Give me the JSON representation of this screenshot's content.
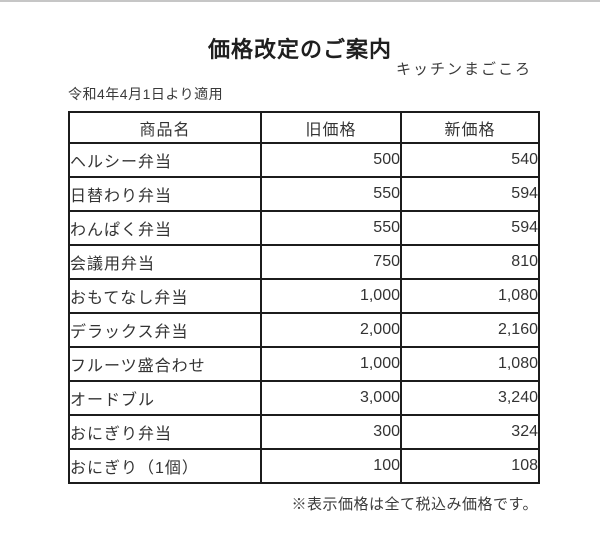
{
  "page": {
    "title": "価格改定のご案内",
    "company": "キッチンまごころ",
    "effective_date": "令和4年4月1日より適用",
    "footnote": "※表示価格は全て税込み価格です。"
  },
  "table": {
    "headers": [
      "商品名",
      "旧価格",
      "新価格"
    ],
    "rows": [
      {
        "name": "ヘルシー弁当",
        "old": "500",
        "new": "540"
      },
      {
        "name": "日替わり弁当",
        "old": "550",
        "new": "594"
      },
      {
        "name": "わんぱく弁当",
        "old": "550",
        "new": "594"
      },
      {
        "name": "会議用弁当",
        "old": "750",
        "new": "810"
      },
      {
        "name": "おもてなし弁当",
        "old": "1,000",
        "new": "1,080"
      },
      {
        "name": "デラックス弁当",
        "old": "2,000",
        "new": "2,160"
      },
      {
        "name": "フルーツ盛合わせ",
        "old": "1,000",
        "new": "1,080"
      },
      {
        "name": "オードブル",
        "old": "3,000",
        "new": "3,240"
      },
      {
        "name": "おにぎり弁当",
        "old": "300",
        "new": "324"
      },
      {
        "name": "おにぎり（1個）",
        "old": "100",
        "new": "108"
      }
    ]
  }
}
